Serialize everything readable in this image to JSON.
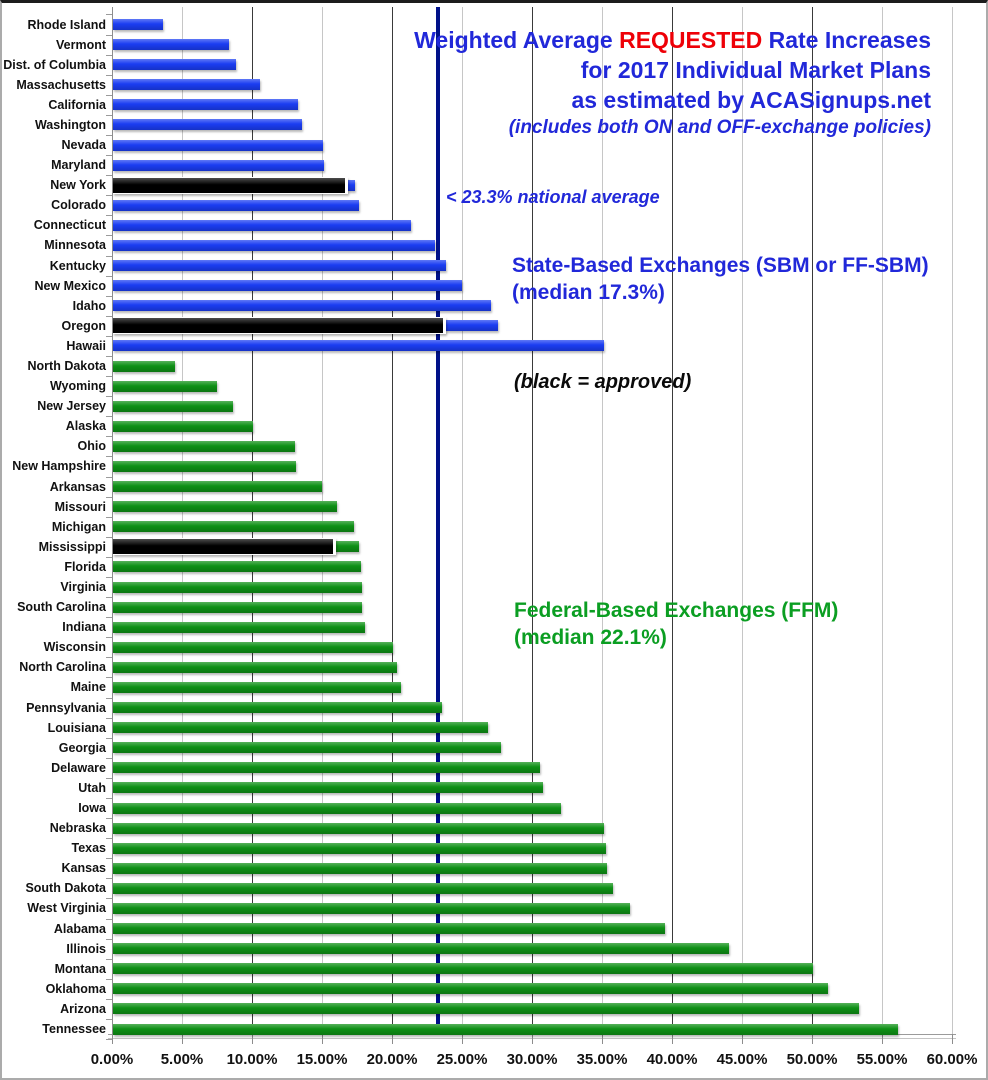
{
  "title": {
    "line1_pre": "Weighted Average ",
    "line1_highlight": "REQUESTED",
    "line1_post": " Rate Increases",
    "line2": "for 2017 Individual Market Plans",
    "line3": "as estimated by ACASignups.net",
    "line4": "(includes both ON and OFF-exchange policies)"
  },
  "annotations": {
    "national_average": "< 23.3% national average",
    "sbm_heading": "State-Based Exchanges (SBM or FF-SBM)",
    "sbm_median": "(median 17.3%)",
    "approved_note": "(black = approved)",
    "ffm_heading": "Federal-Based Exchanges (FFM)",
    "ffm_median": "(median 22.1%)"
  },
  "colors": {
    "title_blue": "#2128d9",
    "highlight_red": "#ee0007",
    "sbm_bar": "#1b3df2",
    "ffm_bar": "#0e9015",
    "ffm_text": "#0b9e22",
    "approved_bar": "#000000",
    "national_line": "#001189",
    "grid_light": "#c6c6c6",
    "grid_dark": "#3a3a3a"
  },
  "chart_data": {
    "type": "bar",
    "orientation": "horizontal",
    "title": "Weighted Average REQUESTED Rate Increases for 2017 Individual Market Plans as estimated by ACASignups.net",
    "xlim": [
      0,
      60
    ],
    "x_tick_labels": [
      "0.00%",
      "5.00%",
      "10.00%",
      "15.00%",
      "20.00%",
      "25.00%",
      "30.00%",
      "35.00%",
      "40.00%",
      "45.00%",
      "50.00%",
      "55.00%",
      "60.00%"
    ],
    "national_average_pct": 23.3,
    "grid": true,
    "note": "black = approved",
    "groups": [
      {
        "name": "State-Based Exchanges (SBM or FF-SBM)",
        "median_pct": 17.3,
        "color_key": "sbm_bar",
        "bars": [
          {
            "state": "Rhode Island",
            "requested": 3.6,
            "approved": null
          },
          {
            "state": "Vermont",
            "requested": 8.3,
            "approved": null
          },
          {
            "state": "Dist. of Columbia",
            "requested": 8.8,
            "approved": null
          },
          {
            "state": "Massachusetts",
            "requested": 10.5,
            "approved": null
          },
          {
            "state": "California",
            "requested": 13.2,
            "approved": null
          },
          {
            "state": "Washington",
            "requested": 13.5,
            "approved": null
          },
          {
            "state": "Nevada",
            "requested": 15.0,
            "approved": null
          },
          {
            "state": "Maryland",
            "requested": 15.1,
            "approved": null
          },
          {
            "state": "New York",
            "requested": 17.3,
            "approved": 16.6
          },
          {
            "state": "Colorado",
            "requested": 17.6,
            "approved": null
          },
          {
            "state": "Connecticut",
            "requested": 21.3,
            "approved": null
          },
          {
            "state": "Minnesota",
            "requested": 23.0,
            "approved": null
          },
          {
            "state": "Kentucky",
            "requested": 23.8,
            "approved": null
          },
          {
            "state": "New Mexico",
            "requested": 24.9,
            "approved": null
          },
          {
            "state": "Idaho",
            "requested": 27.0,
            "approved": null
          },
          {
            "state": "Oregon",
            "requested": 27.5,
            "approved": 23.6
          },
          {
            "state": "Hawaii",
            "requested": 35.1,
            "approved": null
          }
        ]
      },
      {
        "name": "Federal-Based Exchanges (FFM)",
        "median_pct": 22.1,
        "color_key": "ffm_bar",
        "bars": [
          {
            "state": "North Dakota",
            "requested": 4.4,
            "approved": null
          },
          {
            "state": "Wyoming",
            "requested": 7.4,
            "approved": null
          },
          {
            "state": "New Jersey",
            "requested": 8.6,
            "approved": null
          },
          {
            "state": "Alaska",
            "requested": 10.0,
            "approved": null
          },
          {
            "state": "Ohio",
            "requested": 13.0,
            "approved": null
          },
          {
            "state": "New Hampshire",
            "requested": 13.1,
            "approved": null
          },
          {
            "state": "Arkansas",
            "requested": 14.9,
            "approved": null
          },
          {
            "state": "Missouri",
            "requested": 16.0,
            "approved": null
          },
          {
            "state": "Michigan",
            "requested": 17.2,
            "approved": null
          },
          {
            "state": "Mississippi",
            "requested": 17.6,
            "approved": 15.7
          },
          {
            "state": "Florida",
            "requested": 17.7,
            "approved": null
          },
          {
            "state": "Virginia",
            "requested": 17.8,
            "approved": null
          },
          {
            "state": "South Carolina",
            "requested": 17.8,
            "approved": null
          },
          {
            "state": "Indiana",
            "requested": 18.0,
            "approved": null
          },
          {
            "state": "Wisconsin",
            "requested": 20.0,
            "approved": null
          },
          {
            "state": "North Carolina",
            "requested": 20.3,
            "approved": null
          },
          {
            "state": "Maine",
            "requested": 20.6,
            "approved": null
          },
          {
            "state": "Pennsylvania",
            "requested": 23.5,
            "approved": null
          },
          {
            "state": "Louisiana",
            "requested": 26.8,
            "approved": null
          },
          {
            "state": "Georgia",
            "requested": 27.7,
            "approved": null
          },
          {
            "state": "Delaware",
            "requested": 30.5,
            "approved": null
          },
          {
            "state": "Utah",
            "requested": 30.7,
            "approved": null
          },
          {
            "state": "Iowa",
            "requested": 32.0,
            "approved": null
          },
          {
            "state": "Nebraska",
            "requested": 35.1,
            "approved": null
          },
          {
            "state": "Texas",
            "requested": 35.2,
            "approved": null
          },
          {
            "state": "Kansas",
            "requested": 35.3,
            "approved": null
          },
          {
            "state": "South Dakota",
            "requested": 35.7,
            "approved": null
          },
          {
            "state": "West Virginia",
            "requested": 36.9,
            "approved": null
          },
          {
            "state": "Alabama",
            "requested": 39.4,
            "approved": null
          },
          {
            "state": "Illinois",
            "requested": 44.0,
            "approved": null
          },
          {
            "state": "Montana",
            "requested": 50.0,
            "approved": null
          },
          {
            "state": "Oklahoma",
            "requested": 51.1,
            "approved": null
          },
          {
            "state": "Arizona",
            "requested": 53.3,
            "approved": null
          },
          {
            "state": "Tennessee",
            "requested": 56.1,
            "approved": null
          }
        ]
      }
    ]
  }
}
